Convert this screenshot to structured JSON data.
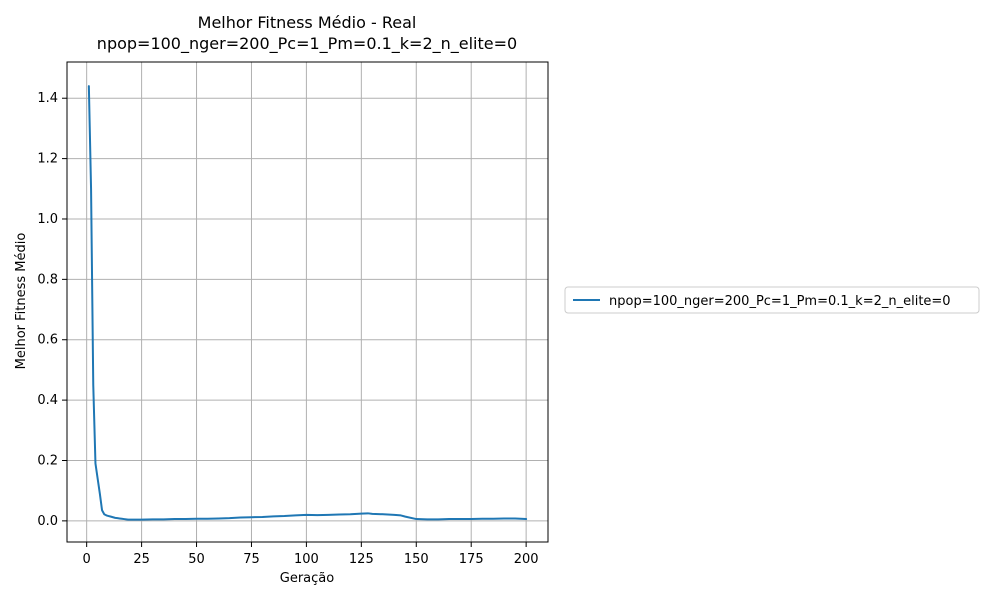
{
  "chart_data": {
    "type": "line",
    "title": "Melhor Fitness Médio - Real\nnpop=100_nger=200_Pc=1_Pm=0.1_k=2_n_elite=0",
    "title_lines": [
      "Melhor Fitness Médio - Real",
      "npop=100_nger=200_Pc=1_Pm=0.1_k=2_n_elite=0"
    ],
    "xlabel": "Geração",
    "ylabel": "Melhor Fitness Médio",
    "xlim": [
      -8.95,
      209.95
    ],
    "ylim": [
      -0.07,
      1.52
    ],
    "xticks": [
      0,
      25,
      50,
      75,
      100,
      125,
      150,
      175,
      200
    ],
    "yticks": [
      0.0,
      0.2,
      0.4,
      0.6,
      0.8,
      1.0,
      1.2,
      1.4
    ],
    "xtick_labels": [
      "0",
      "25",
      "50",
      "75",
      "100",
      "125",
      "150",
      "175",
      "200"
    ],
    "ytick_labels": [
      "0.0",
      "0.2",
      "0.4",
      "0.6",
      "0.8",
      "1.0",
      "1.2",
      "1.4"
    ],
    "grid": true,
    "legend_position": "outside-right",
    "series": [
      {
        "name": "npop=100_nger=200_Pc=1_Pm=0.1_k=2_n_elite=0",
        "color": "#1f77b4",
        "x": [
          1,
          2,
          3,
          4,
          5,
          6,
          7,
          8,
          9,
          10,
          11,
          12,
          13,
          14,
          15,
          16,
          17,
          18,
          19,
          20,
          25,
          30,
          35,
          40,
          45,
          50,
          55,
          60,
          65,
          70,
          75,
          80,
          85,
          90,
          95,
          100,
          105,
          110,
          115,
          120,
          125,
          128,
          130,
          135,
          140,
          143,
          145,
          150,
          155,
          160,
          165,
          170,
          175,
          180,
          185,
          190,
          195,
          200
        ],
        "y": [
          1.44,
          1.1,
          0.45,
          0.19,
          0.14,
          0.09,
          0.035,
          0.022,
          0.018,
          0.016,
          0.014,
          0.012,
          0.01,
          0.009,
          0.008,
          0.007,
          0.006,
          0.005,
          0.004,
          0.004,
          0.004,
          0.005,
          0.005,
          0.006,
          0.006,
          0.007,
          0.007,
          0.008,
          0.009,
          0.011,
          0.012,
          0.013,
          0.015,
          0.016,
          0.018,
          0.02,
          0.019,
          0.02,
          0.021,
          0.022,
          0.024,
          0.025,
          0.023,
          0.022,
          0.02,
          0.018,
          0.014,
          0.006,
          0.005,
          0.005,
          0.006,
          0.006,
          0.006,
          0.007,
          0.007,
          0.008,
          0.008,
          0.006
        ]
      }
    ]
  }
}
